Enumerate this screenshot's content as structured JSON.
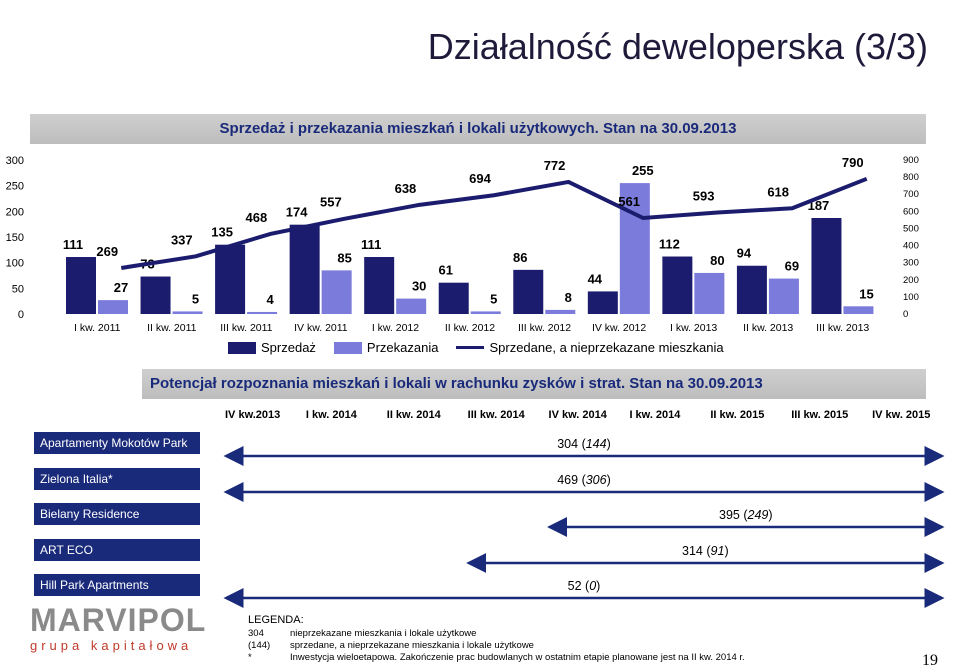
{
  "page": {
    "title": "Działalność deweloperska (3/3)",
    "page_number": "19"
  },
  "chart_data": {
    "type": "bar",
    "title": "Sprzedaż i przekazania mieszkań i lokali użytkowych. Stan na 30.09.2013",
    "categories": [
      "I kw. 2011",
      "II kw. 2011",
      "III kw. 2011",
      "IV kw. 2011",
      "I kw. 2012",
      "II kw. 2012",
      "III kw. 2012",
      "IV kw. 2012",
      "I kw. 2013",
      "II kw. 2013",
      "III kw. 2013"
    ],
    "ylim_left": [
      0,
      300
    ],
    "ylim_right": [
      0,
      900
    ],
    "left_ticks": [
      "0",
      "50",
      "100",
      "150",
      "200",
      "250",
      "300"
    ],
    "right_ticks": [
      "0",
      "100",
      "200",
      "300",
      "400",
      "500",
      "600",
      "700",
      "800",
      "900"
    ],
    "series": [
      {
        "name": "Sprzedaż",
        "type": "bar",
        "axis": "left",
        "color": "#1c1c6e",
        "values": [
          111,
          73,
          135,
          174,
          111,
          61,
          86,
          44,
          112,
          94,
          187
        ]
      },
      {
        "name": "Przekazania",
        "type": "bar",
        "axis": "left",
        "color": "#7b7bdc",
        "values": [
          27,
          5,
          4,
          85,
          30,
          5,
          8,
          255,
          80,
          69,
          15
        ]
      },
      {
        "name": "Sprzedane, a nieprzekazane mieszkania",
        "type": "line",
        "axis": "right",
        "color": "#1c1c6e",
        "values": [
          269,
          337,
          468,
          557,
          638,
          694,
          772,
          561,
          593,
          618,
          790
        ]
      }
    ],
    "legend": "bottom"
  },
  "potential": {
    "title": "Potencjał rozpoznania mieszkań i lokali w rachunku zysków i strat. Stan na 30.09.2013",
    "quarters": [
      "IV kw.2013",
      "I kw. 2014",
      "II kw. 2014",
      "III kw. 2014",
      "IV kw. 2014",
      "I kw. 2014",
      "II kw. 2015",
      "III kw. 2015",
      "IV kw. 2015"
    ],
    "projects": [
      {
        "name": "Apartamenty Mokotów Park",
        "value": "304",
        "unsold": "144",
        "start_q": 0,
        "end_q": 9
      },
      {
        "name": "Zielona Italia*",
        "value": "469",
        "unsold": "306",
        "start_q": 0,
        "end_q": 9
      },
      {
        "name": "Bielany Residence",
        "value": "395",
        "unsold": "249",
        "start_q": 4,
        "end_q": 9
      },
      {
        "name": "ART ECO",
        "value": "314",
        "unsold": "91",
        "start_q": 3,
        "end_q": 9
      },
      {
        "name": "Hill Park Apartments",
        "value": "52",
        "unsold": "0",
        "start_q": 0,
        "end_q": 9
      }
    ]
  },
  "legend_box": {
    "heading": "LEGENDA:",
    "rows": [
      {
        "key": "304",
        "text": "nieprzekazane mieszkania i lokale użytkowe"
      },
      {
        "key": "(144)",
        "text": "sprzedane, a nieprzekazane mieszkania i lokale użytkowe"
      },
      {
        "key": "*",
        "text": "Inwestycja wieloetapowa. Zakończenie prac budowlanych w ostatnim etapie planowane jest na II kw. 2014 r."
      }
    ]
  },
  "logo": {
    "main": "MARVIPOL",
    "sub": "grupa kapitałowa"
  }
}
